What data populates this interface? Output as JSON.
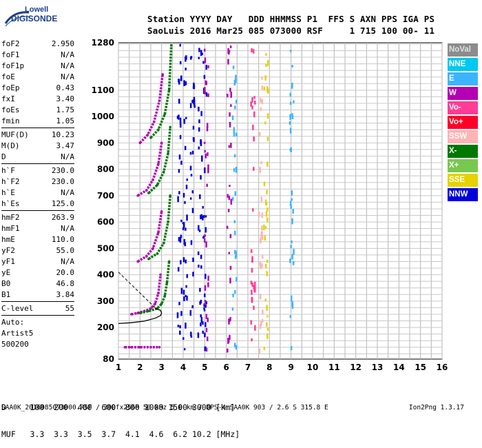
{
  "logo": {
    "line1": "Lowell",
    "line2": "DIGISONDE"
  },
  "header": {
    "line1": "Station YYYY DAY   DDD HHMMSS P1  FFS S AXN PPS IGA PS",
    "line2": "SaoLuis 2016 Mar25 085 073000 RSF     1 715 100 00- 11"
  },
  "params": [
    {
      "name": "foF2",
      "value": "2.950"
    },
    {
      "name": "foF1",
      "value": "N/A"
    },
    {
      "name": "foF1p",
      "value": "N/A"
    },
    {
      "name": "foE",
      "value": "N/A"
    },
    {
      "name": "foEp",
      "value": "0.43"
    },
    {
      "name": "fxI",
      "value": "3.40"
    },
    {
      "name": "foEs",
      "value": "1.75"
    },
    {
      "name": "fmin",
      "value": "1.05"
    },
    {
      "name": "MUF(D)",
      "value": "10.23"
    },
    {
      "name": "M(D)",
      "value": "3.47"
    },
    {
      "name": "D",
      "value": "N/A"
    },
    {
      "name": "h`F",
      "value": "230.0"
    },
    {
      "name": "h`F2",
      "value": "230.0"
    },
    {
      "name": "h`E",
      "value": "N/A"
    },
    {
      "name": "h`Es",
      "value": "125.0"
    },
    {
      "name": "hmF2",
      "value": "263.9"
    },
    {
      "name": "hmF1",
      "value": "N/A"
    },
    {
      "name": "hmE",
      "value": "110.0"
    },
    {
      "name": "yF2",
      "value": "55.0"
    },
    {
      "name": "yF1",
      "value": "N/A"
    },
    {
      "name": "yE",
      "value": "20.0"
    },
    {
      "name": "B0",
      "value": "46.8"
    },
    {
      "name": "B1",
      "value": "3.84"
    },
    {
      "name": "C-level",
      "value": "55"
    }
  ],
  "auto": {
    "line1": "Auto:",
    "line2": "Artist5",
    "line3": "500200"
  },
  "legend": [
    {
      "label": "NoVal",
      "color": "#8c8c8c"
    },
    {
      "label": "NNE",
      "color": "#00c8f0"
    },
    {
      "label": "E",
      "color": "#3cb4ff"
    },
    {
      "label": "W",
      "color": "#b400b4"
    },
    {
      "label": "Vo-",
      "color": "#ff3c96"
    },
    {
      "label": "Vo+",
      "color": "#ff0028"
    },
    {
      "label": "SSW",
      "color": "#ffb4b4"
    },
    {
      "label": "X-",
      "color": "#007800"
    },
    {
      "label": "X+",
      "color": "#78c850"
    },
    {
      "label": "SSE",
      "color": "#e6d200"
    },
    {
      "label": "NNW",
      "color": "#0000dc"
    }
  ],
  "muf_table": {
    "d_label": "D",
    "d_values": [
      "100",
      "200",
      "400",
      "600",
      "800",
      "1000",
      "1500",
      "3000"
    ],
    "d_unit": "[km]",
    "muf_label": "MUF",
    "muf_values": [
      "3.3",
      "3.3",
      "3.5",
      "3.7",
      "4.1",
      "4.6",
      "6.2",
      "10.2"
    ],
    "muf_unit": "[MHz]"
  },
  "footer": {
    "left": "SAA0K_2016085073000.RSF / 300fx256h 50 kHz 5.0 km / DPS-4 SAA0K 903 / 2.6 S 315.8 E",
    "right": "Ion2Png 1.3.17"
  },
  "chart_data": {
    "type": "scatter",
    "xlabel": "",
    "ylabel": "",
    "xlim": [
      1,
      16
    ],
    "ylim": [
      80,
      1280
    ],
    "x_ticks": [
      1,
      2,
      3,
      4,
      5,
      6,
      7,
      8,
      9,
      10,
      11,
      12,
      13,
      14,
      15,
      16
    ],
    "y_ticks": [
      80,
      200,
      300,
      400,
      500,
      600,
      700,
      800,
      900,
      1000,
      1100,
      1280
    ],
    "grid": true,
    "traces": [
      {
        "name": "o-trace",
        "color": "#b400b4",
        "x": [
          1.6,
          1.9,
          2.2,
          2.5,
          2.7,
          2.85,
          2.95
        ],
        "y": [
          250,
          255,
          262,
          272,
          290,
          330,
          400
        ]
      },
      {
        "name": "x-trace",
        "color": "#007800",
        "x": [
          2.0,
          2.4,
          2.8,
          3.0,
          3.15,
          3.25,
          3.35
        ],
        "y": [
          255,
          262,
          272,
          290,
          320,
          370,
          450
        ]
      },
      {
        "name": "multihop-2o",
        "color": "#b400b4",
        "x": [
          1.9,
          2.3,
          2.6,
          2.85,
          3.0
        ],
        "y": [
          450,
          470,
          500,
          560,
          640
        ]
      },
      {
        "name": "multihop-2x",
        "color": "#007800",
        "x": [
          2.4,
          2.8,
          3.1,
          3.3,
          3.4
        ],
        "y": [
          460,
          480,
          520,
          600,
          700
        ]
      },
      {
        "name": "multihop-3o",
        "color": "#b400b4",
        "x": [
          1.9,
          2.3,
          2.6,
          2.85,
          3.0
        ],
        "y": [
          700,
          720,
          760,
          820,
          900
        ]
      },
      {
        "name": "multihop-3x",
        "color": "#007800",
        "x": [
          2.4,
          2.8,
          3.1,
          3.3,
          3.4
        ],
        "y": [
          710,
          740,
          790,
          860,
          960
        ]
      },
      {
        "name": "multihop-4o",
        "color": "#b400b4",
        "x": [
          2.0,
          2.35,
          2.65,
          2.9,
          3.05
        ],
        "y": [
          900,
          930,
          980,
          1060,
          1160
        ]
      },
      {
        "name": "multihop-4x",
        "color": "#007800",
        "x": [
          2.5,
          2.85,
          3.15,
          3.35,
          3.45
        ],
        "y": [
          920,
          950,
          1010,
          1100,
          1270
        ]
      },
      {
        "name": "es-trace",
        "color": "#b400b4",
        "x": [
          1.3,
          1.6,
          2.0,
          2.5,
          2.9
        ],
        "y": [
          125,
          125,
          125,
          125,
          125
        ]
      }
    ],
    "vertical_streaks": [
      {
        "x": 3.8,
        "color": "#0000dc"
      },
      {
        "x": 4.05,
        "color": "#0000dc"
      },
      {
        "x": 4.4,
        "color": "#0000dc"
      },
      {
        "x": 4.75,
        "color": "#0000dc"
      },
      {
        "x": 4.95,
        "color": "#0000dc"
      },
      {
        "x": 5.05,
        "color": "#b400b4"
      },
      {
        "x": 6.1,
        "color": "#b400b4"
      },
      {
        "x": 6.35,
        "color": "#3cb4ff"
      },
      {
        "x": 7.2,
        "color": "#ff3c96"
      },
      {
        "x": 7.55,
        "color": "#ffb4b4"
      },
      {
        "x": 7.8,
        "color": "#e6d200"
      },
      {
        "x": 9.0,
        "color": "#3cb4ff"
      }
    ]
  }
}
